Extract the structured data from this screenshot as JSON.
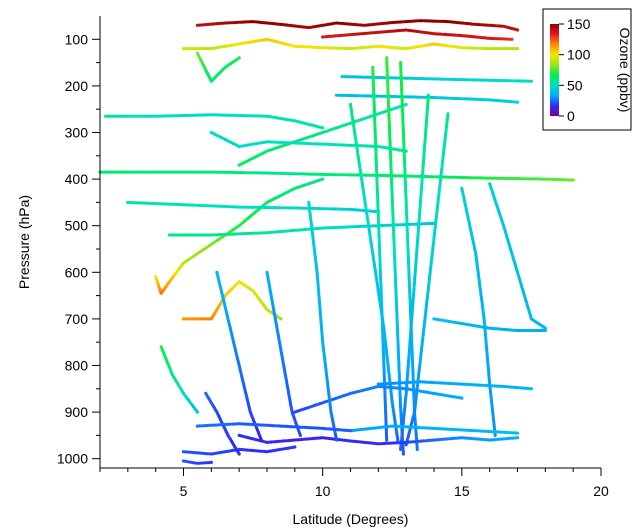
{
  "chart_data": {
    "type": "scatter",
    "title": "",
    "xlabel": "Latitude (Degrees)",
    "ylabel": "Pressure (hPa)",
    "xlim": [
      2,
      20
    ],
    "ylim": [
      1020,
      50
    ],
    "y_reversed": true,
    "x_ticks": [
      5,
      10,
      15,
      20
    ],
    "y_ticks": [
      100,
      200,
      300,
      400,
      500,
      600,
      700,
      800,
      900,
      1000
    ],
    "x_tick_labels": [
      "5",
      "10",
      "15",
      "20"
    ],
    "y_tick_labels": [
      "100",
      "200",
      "300",
      "400",
      "500",
      "600",
      "700",
      "800",
      "900",
      "1000"
    ],
    "grid": false,
    "colorbar": {
      "label": "Ozone (ppbv)",
      "range": [
        0,
        150
      ],
      "ticks": [
        0,
        50,
        100,
        150
      ],
      "tick_labels": [
        "0",
        "50",
        "100",
        "150"
      ],
      "placement": "top-right",
      "colormap": [
        "#7a008f",
        "#2c2cff",
        "#00aaff",
        "#00e0c0",
        "#00ee55",
        "#9be31a",
        "#f2e600",
        "#ff8c00",
        "#e41a1c",
        "#8b0000"
      ]
    },
    "series": [
      {
        "points": [
          [
            5.0,
            120
          ],
          [
            6.0,
            120
          ],
          [
            7.0,
            110
          ],
          [
            8.0,
            100
          ],
          [
            9.0,
            115
          ],
          [
            10.0,
            118
          ],
          [
            11.0,
            120
          ],
          [
            12.0,
            115
          ],
          [
            13.0,
            120
          ],
          [
            14.0,
            110
          ],
          [
            15.0,
            118
          ],
          [
            16.0,
            120
          ],
          [
            17.0,
            120
          ]
        ],
        "o3": [
          95,
          90,
          100,
          105,
          100,
          98,
          92,
          100,
          95,
          105,
          96,
          90,
          88
        ]
      },
      {
        "points": [
          [
            5.5,
            70
          ],
          [
            6.5,
            65
          ],
          [
            7.5,
            62
          ],
          [
            8.5,
            68
          ],
          [
            9.5,
            75
          ],
          [
            10.5,
            65
          ],
          [
            11.5,
            70
          ],
          [
            12.5,
            64
          ],
          [
            13.5,
            60
          ],
          [
            14.5,
            62
          ],
          [
            15.5,
            68
          ],
          [
            16.5,
            72
          ],
          [
            17.0,
            80
          ]
        ],
        "o3": [
          140,
          145,
          150,
          148,
          145,
          150,
          146,
          148,
          150,
          150,
          146,
          142,
          140
        ]
      },
      {
        "points": [
          [
            10.0,
            95
          ],
          [
            11.0,
            90
          ],
          [
            12.0,
            85
          ],
          [
            13.0,
            80
          ],
          [
            14.0,
            88
          ],
          [
            15.0,
            92
          ],
          [
            16.0,
            98
          ],
          [
            16.8,
            100
          ]
        ],
        "o3": [
          135,
          138,
          140,
          142,
          140,
          138,
          136,
          130
        ]
      },
      {
        "points": [
          [
            5.5,
            130
          ],
          [
            6.0,
            190
          ],
          [
            6.5,
            160
          ],
          [
            7.0,
            140
          ]
        ],
        "o3": [
          80,
          60,
          65,
          70
        ]
      },
      {
        "points": [
          [
            2.2,
            265
          ],
          [
            4.0,
            265
          ],
          [
            6.0,
            262
          ],
          [
            8.0,
            265
          ],
          [
            9.0,
            275
          ],
          [
            10.0,
            290
          ]
        ],
        "o3": [
          55,
          50,
          48,
          52,
          50,
          55
        ]
      },
      {
        "points": [
          [
            2.0,
            385
          ],
          [
            4.0,
            385
          ],
          [
            6.0,
            385
          ],
          [
            8.0,
            387
          ],
          [
            10.0,
            390
          ],
          [
            12.0,
            392
          ],
          [
            14.0,
            395
          ],
          [
            16.0,
            398
          ],
          [
            18.0,
            400
          ],
          [
            19.0,
            402
          ]
        ],
        "o3": [
          65,
          60,
          62,
          58,
          60,
          62,
          65,
          70,
          75,
          78
        ]
      },
      {
        "points": [
          [
            10.7,
            180
          ],
          [
            12.0,
            182
          ],
          [
            14.0,
            185
          ],
          [
            16.0,
            188
          ],
          [
            17.5,
            190
          ]
        ],
        "o3": [
          40,
          42,
          45,
          48,
          50
        ]
      },
      {
        "points": [
          [
            10.5,
            220
          ],
          [
            12.0,
            222
          ],
          [
            14.0,
            225
          ],
          [
            16.0,
            230
          ],
          [
            17.0,
            235
          ]
        ],
        "o3": [
          38,
          40,
          42,
          44,
          45
        ]
      },
      {
        "points": [
          [
            4.0,
            610
          ],
          [
            4.2,
            645
          ],
          [
            4.5,
            620
          ],
          [
            5.0,
            580
          ],
          [
            6.0,
            540
          ],
          [
            7.0,
            500
          ],
          [
            8.0,
            450
          ],
          [
            9.0,
            420
          ],
          [
            10.0,
            400
          ]
        ],
        "o3": [
          100,
          120,
          110,
          90,
          80,
          70,
          65,
          60,
          60
        ]
      },
      {
        "points": [
          [
            5.0,
            700
          ],
          [
            6.0,
            700
          ],
          [
            6.5,
            650
          ],
          [
            7.0,
            620
          ],
          [
            7.5,
            640
          ],
          [
            8.0,
            680
          ],
          [
            8.5,
            700
          ]
        ],
        "o3": [
          115,
          118,
          105,
          100,
          95,
          90,
          85
        ]
      },
      {
        "points": [
          [
            3.0,
            450
          ],
          [
            5.0,
            455
          ],
          [
            7.0,
            460
          ],
          [
            9.0,
            462
          ],
          [
            11.0,
            465
          ],
          [
            12.0,
            470
          ]
        ],
        "o3": [
          55,
          52,
          50,
          48,
          45,
          45
        ]
      },
      {
        "points": [
          [
            4.5,
            520
          ],
          [
            6.0,
            520
          ],
          [
            8.0,
            515
          ],
          [
            10.0,
            505
          ],
          [
            12.0,
            500
          ],
          [
            14.0,
            495
          ]
        ],
        "o3": [
          60,
          58,
          55,
          50,
          45,
          42
        ]
      },
      {
        "points": [
          [
            7.0,
            370
          ],
          [
            8.0,
            340
          ],
          [
            9.0,
            320
          ],
          [
            10.0,
            300
          ],
          [
            11.0,
            280
          ],
          [
            12.0,
            260
          ],
          [
            13.0,
            240
          ]
        ],
        "o3": [
          65,
          62,
          60,
          58,
          55,
          52,
          50
        ]
      },
      {
        "points": [
          [
            12.8,
            150
          ],
          [
            12.9,
            300
          ],
          [
            13.0,
            450
          ],
          [
            13.1,
            600
          ],
          [
            13.2,
            750
          ],
          [
            13.3,
            900
          ],
          [
            13.4,
            980
          ]
        ],
        "o3": [
          70,
          65,
          55,
          45,
          35,
          30,
          25
        ]
      },
      {
        "points": [
          [
            12.3,
            140
          ],
          [
            12.4,
            290
          ],
          [
            12.5,
            440
          ],
          [
            12.6,
            590
          ],
          [
            12.7,
            740
          ],
          [
            12.8,
            890
          ],
          [
            12.9,
            990
          ]
        ],
        "o3": [
          72,
          68,
          58,
          48,
          38,
          30,
          22
        ]
      },
      {
        "points": [
          [
            11.8,
            160
          ],
          [
            11.9,
            320
          ],
          [
            12.0,
            480
          ],
          [
            12.1,
            640
          ],
          [
            12.2,
            800
          ],
          [
            12.3,
            960
          ]
        ],
        "o3": [
          70,
          62,
          52,
          42,
          32,
          22
        ]
      },
      {
        "points": [
          [
            11.0,
            240
          ],
          [
            11.4,
            400
          ],
          [
            11.8,
            560
          ],
          [
            12.2,
            720
          ],
          [
            12.5,
            880
          ],
          [
            12.7,
            960
          ]
        ],
        "o3": [
          60,
          52,
          45,
          38,
          30,
          24
        ]
      },
      {
        "points": [
          [
            13.8,
            220
          ],
          [
            13.6,
            380
          ],
          [
            13.4,
            540
          ],
          [
            13.2,
            700
          ],
          [
            13.0,
            860
          ],
          [
            12.8,
            980
          ]
        ],
        "o3": [
          62,
          55,
          46,
          38,
          30,
          24
        ]
      },
      {
        "points": [
          [
            14.5,
            260
          ],
          [
            14.2,
            420
          ],
          [
            13.9,
            580
          ],
          [
            13.6,
            740
          ],
          [
            13.3,
            900
          ],
          [
            13.0,
            970
          ]
        ],
        "o3": [
          58,
          50,
          44,
          36,
          28,
          22
        ]
      },
      {
        "points": [
          [
            7.0,
            950
          ],
          [
            8.0,
            965
          ],
          [
            9.0,
            960
          ],
          [
            10.0,
            955
          ],
          [
            11.0,
            962
          ],
          [
            12.0,
            968
          ],
          [
            13.0,
            965
          ],
          [
            14.0,
            960
          ],
          [
            15.0,
            955
          ],
          [
            16.0,
            960
          ],
          [
            17.0,
            955
          ]
        ],
        "o3": [
          18,
          15,
          12,
          14,
          16,
          15,
          20,
          25,
          30,
          32,
          35
        ]
      },
      {
        "points": [
          [
            5.0,
            985
          ],
          [
            6.0,
            990
          ],
          [
            7.0,
            980
          ],
          [
            8.0,
            985
          ],
          [
            9.0,
            975
          ]
        ],
        "o3": [
          22,
          20,
          18,
          16,
          18
        ]
      },
      {
        "points": [
          [
            5.0,
            1005
          ],
          [
            5.5,
            1010
          ],
          [
            6.0,
            1008
          ]
        ],
        "o3": [
          22,
          20,
          18
        ]
      },
      {
        "points": [
          [
            9.0,
            900
          ],
          [
            10.0,
            880
          ],
          [
            11.0,
            860
          ],
          [
            12.0,
            845
          ],
          [
            13.0,
            850
          ],
          [
            14.0,
            860
          ],
          [
            15.0,
            870
          ]
        ],
        "o3": [
          20,
          22,
          25,
          28,
          30,
          32,
          35
        ]
      },
      {
        "points": [
          [
            9.5,
            450
          ],
          [
            9.8,
            600
          ],
          [
            10.0,
            750
          ],
          [
            10.3,
            900
          ],
          [
            10.5,
            960
          ]
        ],
        "o3": [
          48,
          40,
          35,
          28,
          22
        ]
      },
      {
        "points": [
          [
            16.0,
            410
          ],
          [
            16.5,
            500
          ],
          [
            17.0,
            600
          ],
          [
            17.5,
            700
          ],
          [
            18.0,
            720
          ]
        ],
        "o3": [
          45,
          42,
          40,
          38,
          36
        ]
      },
      {
        "points": [
          [
            15.0,
            420
          ],
          [
            15.5,
            560
          ],
          [
            15.8,
            700
          ],
          [
            16.0,
            840
          ],
          [
            16.2,
            950
          ]
        ],
        "o3": [
          46,
          40,
          36,
          32,
          30
        ]
      },
      {
        "points": [
          [
            6.2,
            600
          ],
          [
            6.6,
            700
          ],
          [
            7.0,
            800
          ],
          [
            7.4,
            900
          ],
          [
            7.8,
            960
          ]
        ],
        "o3": [
          38,
          32,
          26,
          20,
          15
        ]
      },
      {
        "points": [
          [
            5.8,
            860
          ],
          [
            6.2,
            900
          ],
          [
            6.6,
            950
          ],
          [
            7.0,
            990
          ]
        ],
        "o3": [
          25,
          20,
          18,
          15
        ]
      },
      {
        "points": [
          [
            8.0,
            600
          ],
          [
            8.3,
            700
          ],
          [
            8.6,
            800
          ],
          [
            8.9,
            900
          ],
          [
            9.2,
            950
          ]
        ],
        "o3": [
          35,
          30,
          26,
          22,
          20
        ]
      },
      {
        "points": [
          [
            14.0,
            700
          ],
          [
            15.0,
            710
          ],
          [
            16.0,
            720
          ],
          [
            17.0,
            725
          ],
          [
            18.0,
            725
          ]
        ],
        "o3": [
          40,
          38,
          36,
          35,
          34
        ]
      },
      {
        "points": [
          [
            12.0,
            840
          ],
          [
            13.5,
            835
          ],
          [
            15.0,
            840
          ],
          [
            16.5,
            845
          ],
          [
            17.5,
            850
          ]
        ],
        "o3": [
          30,
          32,
          34,
          36,
          38
        ]
      },
      {
        "points": [
          [
            11.0,
            940
          ],
          [
            12.5,
            930
          ],
          [
            14.0,
            935
          ],
          [
            15.5,
            940
          ],
          [
            17.0,
            945
          ]
        ],
        "o3": [
          32,
          34,
          36,
          38,
          40
        ]
      },
      {
        "points": [
          [
            5.5,
            930
          ],
          [
            7.0,
            925
          ],
          [
            8.5,
            930
          ],
          [
            10.0,
            935
          ],
          [
            11.0,
            940
          ]
        ],
        "o3": [
          26,
          24,
          22,
          22,
          24
        ]
      },
      {
        "points": [
          [
            6.0,
            300
          ],
          [
            7.0,
            330
          ],
          [
            8.0,
            320
          ],
          [
            10.0,
            325
          ],
          [
            12.0,
            330
          ],
          [
            13.0,
            340
          ]
        ],
        "o3": [
          50,
          48,
          50,
          52,
          54,
          56
        ]
      },
      {
        "points": [
          [
            4.2,
            760
          ],
          [
            4.6,
            820
          ],
          [
            5.0,
            860
          ],
          [
            5.5,
            900
          ]
        ],
        "o3": [
          70,
          60,
          50,
          40
        ]
      }
    ]
  }
}
